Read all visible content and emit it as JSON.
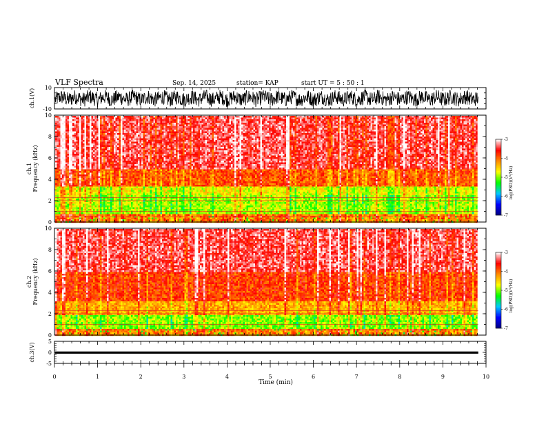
{
  "header": {
    "title": "VLF Spectra",
    "date": "Sep. 14, 2025",
    "station": "station= KAP",
    "start": "start  UT =  5  : 50 : 1"
  },
  "chart_data": [
    {
      "type": "line",
      "name": "ch1-waveform",
      "ylabel": "ch.1(V)",
      "ylim": [
        -10,
        10
      ],
      "yticks": [
        "10",
        "-10"
      ],
      "description_values": "noisy waveform roughly within -8 to 8 V over 0 to 9.8 min"
    },
    {
      "type": "heatmap",
      "name": "ch1-spectrogram",
      "ylabel": "ch.1\nFrequency  (kHz)",
      "ylabel_lines": [
        "ch.1",
        "Frequency  (kHz)"
      ],
      "ylim": [
        0,
        10
      ],
      "yticks": [
        "0",
        "2",
        "4",
        "6",
        "8",
        "10"
      ],
      "colorbar": {
        "label": "log(PSD)(V²/Hz)",
        "range": [
          -7,
          -3
        ],
        "ticks": [
          "-3",
          "-4",
          "-5",
          "-6",
          "-7"
        ]
      },
      "bands_khz": [
        {
          "from": 0,
          "to": 0.8,
          "level": -4.0
        },
        {
          "from": 0.8,
          "to": 2.6,
          "level": -4.9
        },
        {
          "from": 2.6,
          "to": 3.4,
          "level": -4.7
        },
        {
          "from": 3.4,
          "to": 5.0,
          "level": -3.9
        },
        {
          "from": 5.0,
          "to": 10,
          "level": -3.4
        }
      ]
    },
    {
      "type": "heatmap",
      "name": "ch2-spectrogram",
      "ylabel": "ch.2\nFrequency  (kHz)",
      "ylabel_lines": [
        "ch.2",
        "Frequency  (kHz)"
      ],
      "ylim": [
        0,
        10
      ],
      "yticks": [
        "0",
        "2",
        "4",
        "6",
        "8",
        "10"
      ],
      "colorbar": {
        "label": "log(PSD)(V²/Hz)",
        "range": [
          -7,
          -3
        ],
        "ticks": [
          "-3",
          "-4",
          "-5",
          "-6",
          "-7"
        ]
      },
      "bands_khz": [
        {
          "from": 0,
          "to": 0.6,
          "level": -4.1
        },
        {
          "from": 0.6,
          "to": 2.0,
          "level": -5.0
        },
        {
          "from": 2.0,
          "to": 3.2,
          "level": -4.3
        },
        {
          "from": 3.2,
          "to": 6.0,
          "level": -3.8
        },
        {
          "from": 6.0,
          "to": 10,
          "level": -3.4
        }
      ]
    },
    {
      "type": "line",
      "name": "ch3-waveform",
      "ylabel": "ch.3(V)",
      "ylim": [
        -5,
        5
      ],
      "yticks": [
        "5",
        "0",
        "-5"
      ],
      "band_v": [
        -0.6,
        0.4
      ]
    }
  ],
  "xaxis": {
    "label": "Time  (min)",
    "range": [
      0,
      10
    ],
    "data_end": 9.82,
    "ticks": [
      "0",
      "1",
      "2",
      "3",
      "4",
      "5",
      "6",
      "7",
      "8",
      "9",
      "10"
    ]
  },
  "colors": {
    "trace": "#000000",
    "cmap": [
      "#00007f",
      "#0000ff",
      "#00c8ff",
      "#00ff00",
      "#ffff00",
      "#ff8c00",
      "#ff0000",
      "#ffffff"
    ]
  }
}
